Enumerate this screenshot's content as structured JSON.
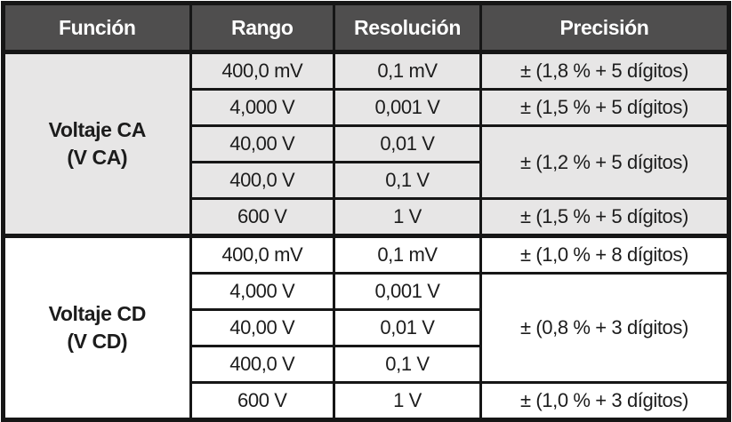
{
  "table": {
    "headers": {
      "funcion": "Función",
      "rango": "Rango",
      "resolucion": "Resolución",
      "precision": "Precisión"
    },
    "colors": {
      "header_bg": "#4f4e4e",
      "header_text": "#ffffff",
      "section_ca_bg": "#e7e6e6",
      "section_cd_bg": "#ffffff",
      "border": "#161616",
      "body_text": "#1c1c1c"
    },
    "sections": [
      {
        "function": {
          "line1": "Voltaje CA",
          "line2": "(V CA)"
        },
        "rows": [
          {
            "rango": "400,0 mV",
            "resolucion": "0,1 mV",
            "precision": "± (1,8 % + 5 dígitos)"
          },
          {
            "rango": "4,000 V",
            "resolucion": "0,001 V",
            "precision": "± (1,5 % + 5 dígitos)"
          },
          {
            "rango": "40,00 V",
            "resolucion": "0,01 V",
            "precision": "± (1,2 % + 5 dígitos)",
            "precision_rowspan": 2
          },
          {
            "rango": "400,0 V",
            "resolucion": "0,1 V"
          },
          {
            "rango": "600 V",
            "resolucion": "1 V",
            "precision": "± (1,5 % + 5 dígitos)"
          }
        ]
      },
      {
        "function": {
          "line1": "Voltaje CD",
          "line2": "(V CD)"
        },
        "rows": [
          {
            "rango": "400,0 mV",
            "resolucion": "0,1 mV",
            "precision": "± (1,0 % + 8 dígitos)"
          },
          {
            "rango": "4,000 V",
            "resolucion": "0,001 V",
            "precision": "± (0,8 % + 3 dígitos)",
            "precision_rowspan": 3
          },
          {
            "rango": "40,00 V",
            "resolucion": "0,01 V"
          },
          {
            "rango": "400,0 V",
            "resolucion": "0,1 V"
          },
          {
            "rango": "600 V",
            "resolucion": "1 V",
            "precision": "± (1,0 % + 3 dígitos)"
          }
        ]
      }
    ]
  }
}
